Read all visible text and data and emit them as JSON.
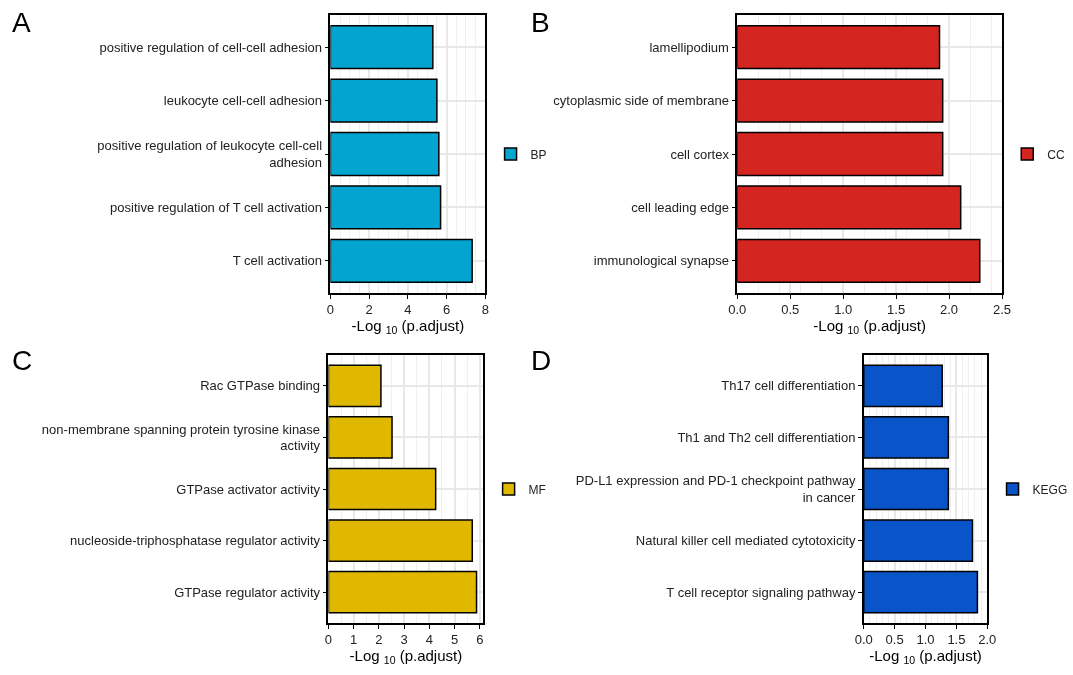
{
  "chart_data": [
    {
      "type": "bar",
      "title": "A",
      "orientation": "horizontal",
      "categories": [
        "positive regulation of cell-cell adhesion",
        "leukocyte cell-cell adhesion",
        "positive regulation of leukocyte cell-cell adhesion",
        "positive regulation of T cell activation",
        "T cell activation"
      ],
      "series": [
        {
          "name": "BP",
          "color": "#04a4d0",
          "values": [
            5.29,
            5.5,
            5.6,
            5.69,
            7.32
          ]
        }
      ],
      "xlabel": "-Log $_{10}$ (p.adjust)",
      "xlim": [
        0,
        8
      ],
      "xticks": [
        0,
        2,
        4,
        6,
        8
      ],
      "grid": true,
      "legend": "right"
    },
    {
      "type": "bar",
      "title": "B",
      "orientation": "horizontal",
      "categories": [
        "lamellipodium",
        "cytoplasmic side of membrane",
        "cell cortex",
        "cell leading edge",
        "immunological synapse"
      ],
      "series": [
        {
          "name": "CC",
          "color": "#d42520",
          "values": [
            1.91,
            1.94,
            1.94,
            2.11,
            2.29
          ]
        }
      ],
      "xlabel": "-Log $_{10}$ (p.adjust)",
      "xlim": [
        0,
        2.5
      ],
      "xticks": [
        {
          "value": 0,
          "label": "0.0"
        },
        0.5,
        {
          "value": 1,
          "label": "1.0"
        },
        1.5,
        {
          "value": 2,
          "label": "2.0"
        },
        2.5
      ],
      "grid": true,
      "legend": "right"
    },
    {
      "type": "bar",
      "title": "C",
      "orientation": "horizontal",
      "categories": [
        "Rac GTPase binding",
        "non-membrane spanning protein tyrosine kinase activity",
        "GTPase activator activity",
        "nucleoside-triphosphatase regulator activity",
        "GTPase regulator activity"
      ],
      "series": [
        {
          "name": "MF",
          "color": "#e0b800",
          "values": [
            2.08,
            2.52,
            4.25,
            5.7,
            5.87
          ]
        }
      ],
      "xlabel": "-Log $_{10}$ (p.adjust)",
      "xlim": [
        0,
        6.14
      ],
      "xticks": [
        0,
        1,
        2,
        3,
        4,
        5,
        6
      ],
      "grid": true,
      "legend": "right"
    },
    {
      "type": "bar",
      "title": "D",
      "orientation": "horizontal",
      "categories": [
        "Th17 cell differentiation",
        "Th1 and Th2 cell differentiation",
        "PD-L1 expression and PD-1 checkpoint pathway in cancer",
        "Natural killer cell mediated cytotoxicity",
        "T cell receptor signaling pathway"
      ],
      "series": [
        {
          "name": "KEGG",
          "color": "#0854c8",
          "values": [
            1.27,
            1.37,
            1.37,
            1.76,
            1.84
          ]
        }
      ],
      "xlabel": "-Log $_{10}$ (p.adjust)",
      "xlim": [
        0,
        2
      ],
      "xticks": [
        {
          "value": 0,
          "label": "0.0"
        },
        0.5,
        {
          "value": 1,
          "label": "1.0"
        },
        1.5,
        {
          "value": 2,
          "label": "2.0"
        }
      ],
      "grid": true,
      "legend": "right"
    }
  ]
}
